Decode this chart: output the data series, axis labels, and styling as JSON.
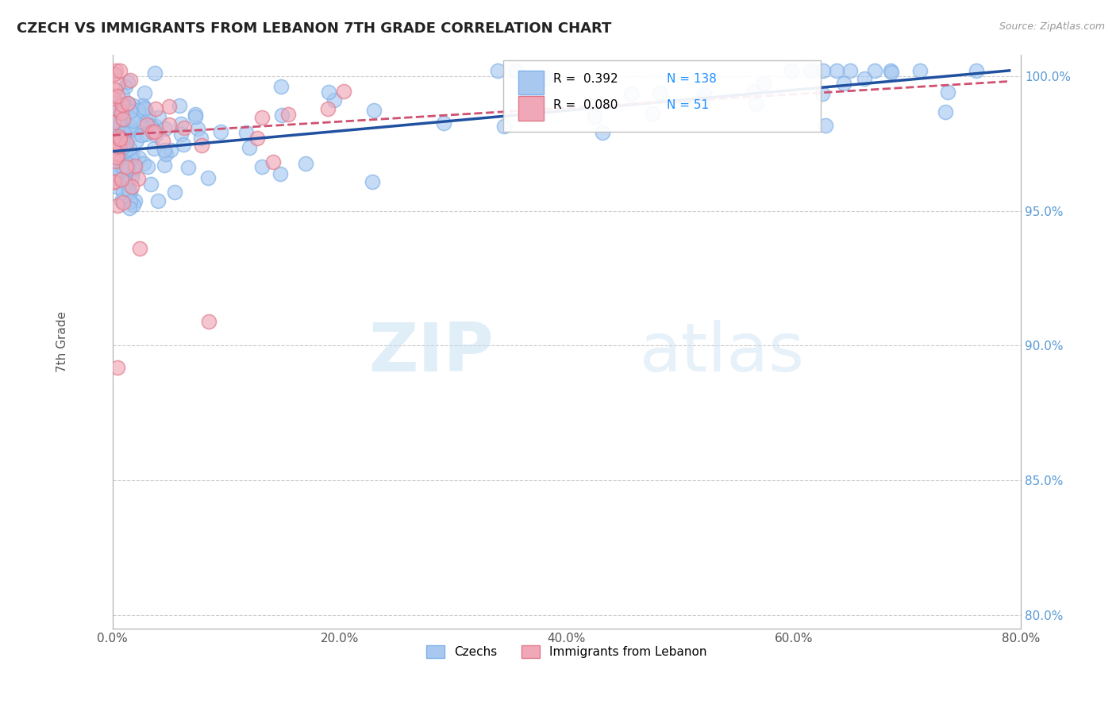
{
  "title": "CZECH VS IMMIGRANTS FROM LEBANON 7TH GRADE CORRELATION CHART",
  "source_text": "Source: ZipAtlas.com",
  "ylabel": "7th Grade",
  "xlim": [
    0.0,
    0.8
  ],
  "ylim": [
    0.795,
    1.008
  ],
  "xtick_labels": [
    "0.0%",
    "20.0%",
    "40.0%",
    "60.0%",
    "80.0%"
  ],
  "xtick_vals": [
    0.0,
    0.2,
    0.4,
    0.6,
    0.8
  ],
  "ytick_labels": [
    "100.0%",
    "95.0%",
    "90.0%",
    "85.0%",
    "80.0%"
  ],
  "ytick_vals": [
    1.0,
    0.95,
    0.9,
    0.85,
    0.8
  ],
  "czech_color": "#A8C8F0",
  "czech_color_edge": "#7EB0E8",
  "lebanon_color": "#F0A8B8",
  "lebanon_color_edge": "#E07888",
  "trend_czech_color": "#2050A0",
  "trend_lebanon_color": "#D05070",
  "R_czech": 0.392,
  "N_czech": 138,
  "R_lebanon": 0.08,
  "N_lebanon": 51,
  "legend_label_czech": "Czechs",
  "legend_label_lebanon": "Immigrants from Lebanon",
  "watermark_zip": "ZIP",
  "watermark_atlas": "atlas",
  "trend_czech_x0": 0.0,
  "trend_czech_y0": 0.972,
  "trend_czech_x1": 0.79,
  "trend_czech_y1": 1.002,
  "trend_leb_x0": 0.0,
  "trend_leb_y0": 0.978,
  "trend_leb_x1": 0.79,
  "trend_leb_y1": 0.998
}
